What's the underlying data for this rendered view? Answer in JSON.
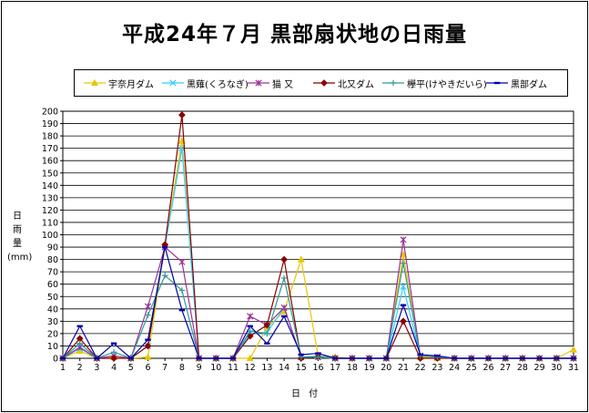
{
  "chart_data": {
    "type": "line",
    "title": "平成24年７月 黒部扇状地の日雨量",
    "xlabel": "日 付",
    "ylabel": [
      "日",
      "雨",
      "量",
      "(mm)"
    ],
    "x": [
      1,
      2,
      3,
      4,
      5,
      6,
      7,
      8,
      9,
      10,
      11,
      12,
      13,
      14,
      15,
      16,
      17,
      18,
      19,
      20,
      21,
      22,
      23,
      24,
      25,
      26,
      27,
      28,
      29,
      30,
      31
    ],
    "ylim": [
      0,
      200
    ],
    "ystep": 10,
    "grid": true,
    "legend_position": "top",
    "series": [
      {
        "name": "宇奈月ダム",
        "color": "#e6c800",
        "marker": "triangle",
        "values": [
          0,
          6,
          0,
          1,
          0,
          1,
          92,
          176,
          0,
          0,
          0,
          0,
          25,
          38,
          80,
          2,
          1,
          0,
          0,
          0,
          84,
          1,
          0,
          0,
          0,
          0,
          0,
          0,
          0,
          0,
          7
        ]
      },
      {
        "name": "黒薙(くろなぎ)",
        "color": "#33ccff",
        "marker": "x",
        "values": [
          0,
          8,
          0,
          2,
          0,
          10,
          90,
          170,
          0,
          0,
          0,
          20,
          21,
          41,
          1,
          2,
          0,
          0,
          0,
          0,
          58,
          2,
          1,
          0,
          0,
          0,
          0,
          0,
          0,
          0,
          0
        ]
      },
      {
        "name": "猫 又",
        "color": "#993399",
        "marker": "star",
        "values": [
          0,
          9,
          0,
          2,
          0,
          42,
          90,
          78,
          0,
          0,
          0,
          34,
          27,
          41,
          1,
          1,
          0,
          0,
          0,
          0,
          96,
          2,
          1,
          0,
          0,
          0,
          0,
          0,
          0,
          0,
          0
        ]
      },
      {
        "name": "北又ダム",
        "color": "#8b0000",
        "marker": "diamond",
        "values": [
          0,
          16,
          0,
          0,
          0,
          10,
          92,
          197,
          0,
          0,
          0,
          18,
          27,
          80,
          0,
          1,
          0,
          0,
          0,
          0,
          30,
          0,
          0,
          0,
          0,
          0,
          0,
          0,
          0,
          0,
          0
        ]
      },
      {
        "name": "欅平(けやきだいら)",
        "color": "#339999",
        "marker": "plus",
        "values": [
          0,
          12,
          0,
          5,
          0,
          35,
          67,
          55,
          0,
          0,
          0,
          22,
          20,
          65,
          1,
          1,
          0,
          0,
          0,
          0,
          77,
          2,
          1,
          0,
          0,
          0,
          0,
          0,
          0,
          0,
          0
        ]
      },
      {
        "name": "黒部ダム",
        "color": "#0000aa",
        "marker": "dash",
        "values": [
          0,
          26,
          0,
          12,
          0,
          15,
          90,
          39,
          0,
          0,
          0,
          26,
          12,
          34,
          3,
          4,
          0,
          0,
          0,
          0,
          43,
          3,
          2,
          0,
          0,
          0,
          0,
          0,
          0,
          0,
          0
        ]
      }
    ]
  }
}
